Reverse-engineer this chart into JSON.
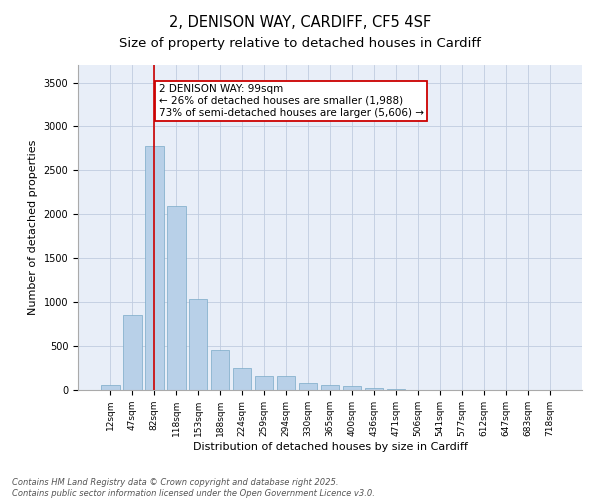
{
  "title_line1": "2, DENISON WAY, CARDIFF, CF5 4SF",
  "title_line2": "Size of property relative to detached houses in Cardiff",
  "xlabel": "Distribution of detached houses by size in Cardiff",
  "ylabel": "Number of detached properties",
  "bar_color": "#b8d0e8",
  "bar_edge_color": "#7aaac8",
  "background_color": "#e8eef8",
  "grid_color": "#c0cce0",
  "categories": [
    "12sqm",
    "47sqm",
    "82sqm",
    "118sqm",
    "153sqm",
    "188sqm",
    "224sqm",
    "259sqm",
    "294sqm",
    "330sqm",
    "365sqm",
    "400sqm",
    "436sqm",
    "471sqm",
    "506sqm",
    "541sqm",
    "577sqm",
    "612sqm",
    "647sqm",
    "683sqm",
    "718sqm"
  ],
  "values": [
    55,
    850,
    2780,
    2100,
    1040,
    460,
    250,
    155,
    155,
    75,
    55,
    40,
    20,
    10,
    5,
    3,
    2,
    1,
    1,
    0,
    0
  ],
  "ylim": [
    0,
    3700
  ],
  "yticks": [
    0,
    500,
    1000,
    1500,
    2000,
    2500,
    3000,
    3500
  ],
  "vline_x": 2,
  "vline_color": "#cc0000",
  "annotation_text_line1": "2 DENISON WAY: 99sqm",
  "annotation_text_line2": "← 26% of detached houses are smaller (1,988)",
  "annotation_text_line3": "73% of semi-detached houses are larger (5,606) →",
  "annotation_box_color": "#cc0000",
  "footer_line1": "Contains HM Land Registry data © Crown copyright and database right 2025.",
  "footer_line2": "Contains public sector information licensed under the Open Government Licence v3.0.",
  "title_fontsize": 10.5,
  "subtitle_fontsize": 9.5,
  "tick_fontsize": 6.5,
  "ylabel_fontsize": 8,
  "xlabel_fontsize": 8,
  "annotation_fontsize": 7.5,
  "footer_fontsize": 6
}
